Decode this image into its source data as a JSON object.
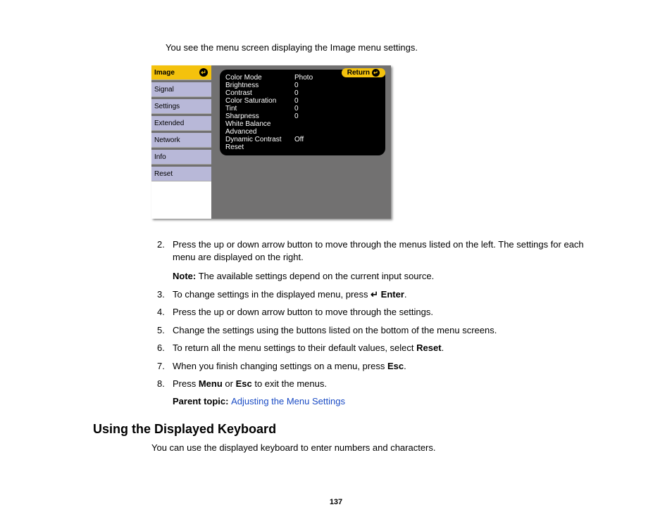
{
  "intro": "You see the menu screen displaying the Image menu settings.",
  "sidebar": {
    "items": [
      {
        "label": "Image",
        "active": true
      },
      {
        "label": "Signal",
        "active": false
      },
      {
        "label": "Settings",
        "active": false
      },
      {
        "label": "Extended",
        "active": false
      },
      {
        "label": "Network",
        "active": false
      },
      {
        "label": "Info",
        "active": false
      },
      {
        "label": "Reset",
        "active": false
      }
    ]
  },
  "panel": {
    "return_label": "Return",
    "rows": [
      {
        "label": "Color Mode",
        "value": "Photo"
      },
      {
        "label": "Brightness",
        "value": "0"
      },
      {
        "label": "Contrast",
        "value": "0"
      },
      {
        "label": "Color Saturation",
        "value": "0"
      },
      {
        "label": "Tint",
        "value": "0"
      },
      {
        "label": "Sharpness",
        "value": "0"
      },
      {
        "label": "White Balance",
        "value": ""
      },
      {
        "label": "Advanced",
        "value": ""
      },
      {
        "label": "Dynamic Contrast",
        "value": "Off"
      },
      {
        "label": "Reset",
        "value": ""
      }
    ]
  },
  "steps": {
    "s2": "Press the up or down arrow button to move through the menus listed on the left. The settings for each menu are displayed on the right.",
    "note_label": "Note:",
    "note_text": " The available settings depend on the current input source.",
    "s3a": "To change settings in the displayed menu, press ",
    "s3_enter_sym": "↵",
    "s3_enter": " Enter",
    "s3b": ".",
    "s4": "Press the up or down arrow button to move through the settings.",
    "s5": "Change the settings using the buttons listed on the bottom of the menu screens.",
    "s6a": "To return all the menu settings to their default values, select ",
    "s6_bold": "Reset",
    "s6b": ".",
    "s7a": "When you finish changing settings on a menu, press ",
    "s7_bold": "Esc",
    "s7b": ".",
    "s8a": "Press ",
    "s8_b1": "Menu",
    "s8_mid": " or ",
    "s8_b2": "Esc",
    "s8b": " to exit the menus."
  },
  "parent": {
    "label": "Parent topic: ",
    "link": "Adjusting the Menu Settings"
  },
  "section_title": "Using the Displayed Keyboard",
  "section_body": "You can use the displayed keyboard to enter numbers and characters.",
  "page_number": "137",
  "colors": {
    "active_tab": "#f4c20d",
    "inactive_tab": "#b8b8d8",
    "panel_bg": "#727171",
    "link": "#1a4bc4"
  }
}
